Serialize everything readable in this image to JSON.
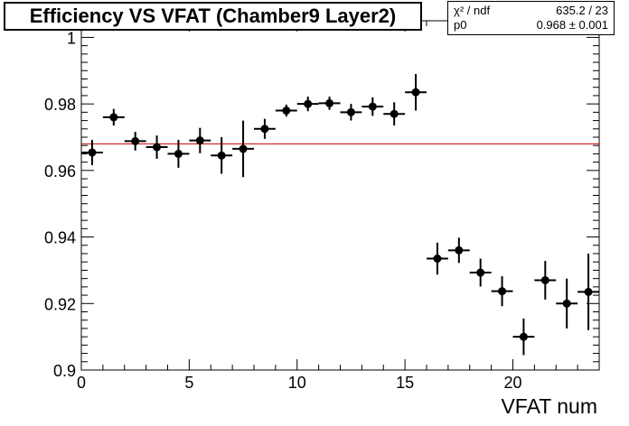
{
  "chart_data": {
    "type": "scatter",
    "title": "Efficiency VS VFAT (Chamber9 Layer2)",
    "xlabel": "VFAT num",
    "ylabel": "",
    "xlim": [
      0,
      24
    ],
    "ylim": [
      0.9,
      1.005
    ],
    "x_ticks": [
      0,
      5,
      10,
      15,
      20
    ],
    "y_ticks": [
      0.9,
      0.92,
      0.94,
      0.96,
      0.98,
      1
    ],
    "x_tick_labels": [
      "0",
      "5",
      "10",
      "15",
      "20"
    ],
    "y_tick_labels": [
      "0.9",
      "0.92",
      "0.94",
      "0.96",
      "0.98",
      "1"
    ],
    "points": [
      {
        "x": 0.5,
        "y": 0.9654,
        "err": 0.0038
      },
      {
        "x": 1.5,
        "y": 0.976,
        "err": 0.0025
      },
      {
        "x": 2.5,
        "y": 0.9688,
        "err": 0.0028
      },
      {
        "x": 3.5,
        "y": 0.967,
        "err": 0.0035
      },
      {
        "x": 4.5,
        "y": 0.965,
        "err": 0.0042
      },
      {
        "x": 5.5,
        "y": 0.969,
        "err": 0.0038
      },
      {
        "x": 6.5,
        "y": 0.9645,
        "err": 0.0055
      },
      {
        "x": 7.5,
        "y": 0.9665,
        "err": 0.0085
      },
      {
        "x": 8.5,
        "y": 0.9725,
        "err": 0.003
      },
      {
        "x": 9.5,
        "y": 0.978,
        "err": 0.0018
      },
      {
        "x": 10.5,
        "y": 0.98,
        "err": 0.0022
      },
      {
        "x": 11.5,
        "y": 0.9802,
        "err": 0.002
      },
      {
        "x": 12.5,
        "y": 0.9775,
        "err": 0.0025
      },
      {
        "x": 13.5,
        "y": 0.9792,
        "err": 0.0028
      },
      {
        "x": 14.5,
        "y": 0.977,
        "err": 0.0035
      },
      {
        "x": 15.5,
        "y": 0.9835,
        "err": 0.0055
      },
      {
        "x": 16.5,
        "y": 0.9335,
        "err": 0.0048
      },
      {
        "x": 17.5,
        "y": 0.936,
        "err": 0.0038
      },
      {
        "x": 18.5,
        "y": 0.9293,
        "err": 0.0042
      },
      {
        "x": 19.5,
        "y": 0.9237,
        "err": 0.0045
      },
      {
        "x": 20.5,
        "y": 0.91,
        "err": 0.0055
      },
      {
        "x": 21.5,
        "y": 0.927,
        "err": 0.0058
      },
      {
        "x": 22.5,
        "y": 0.92,
        "err": 0.0075
      },
      {
        "x": 23.5,
        "y": 0.9235,
        "err": 0.0115
      }
    ],
    "x_half_width": 0.5,
    "fit": {
      "value": 0.968,
      "color": "#cc0000"
    },
    "grid": false,
    "legend": "none"
  },
  "stats": {
    "row1_label": "χ² / ndf",
    "row1_value": "635.2 / 23",
    "row2_label": "p0",
    "row2_value": "0.968 ± 0.001"
  }
}
